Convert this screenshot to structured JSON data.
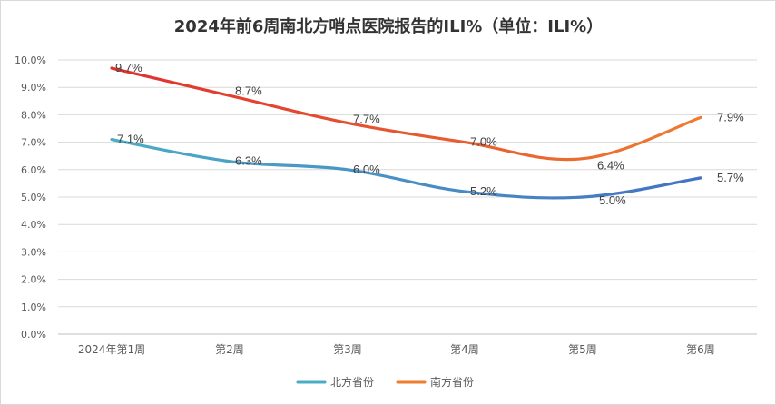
{
  "chart_data": {
    "type": "line",
    "title": "2024年前6周南北方哨点医院报告的ILI%（单位：ILI%）",
    "categories": [
      "2024年第1周",
      "第2周",
      "第3周",
      "第4周",
      "第5周",
      "第6周"
    ],
    "ylim": [
      0,
      10
    ],
    "ytick_labels": [
      "0.0%",
      "1.0%",
      "2.0%",
      "3.0%",
      "4.0%",
      "5.0%",
      "6.0%",
      "7.0%",
      "8.0%",
      "9.0%",
      "10.0%"
    ],
    "grid": true,
    "legend_position": "bottom",
    "series": [
      {
        "name": "北方省份",
        "values": [
          7.1,
          6.3,
          6.0,
          5.2,
          5.0,
          5.7
        ],
        "labels": [
          "7.1%",
          "6.3%",
          "6.0%",
          "5.2%",
          "5.0%",
          "5.7%"
        ],
        "color_start": "#4bacc6",
        "color_end": "#4472c4"
      },
      {
        "name": "南方省份",
        "values": [
          9.7,
          8.7,
          7.7,
          7.0,
          6.4,
          7.9
        ],
        "labels": [
          "9.7%",
          "8.7%",
          "7.7%",
          "7.0%",
          "6.4%",
          "7.9%"
        ],
        "color_start": "#e0302f",
        "color_end": "#ed7d31"
      }
    ]
  }
}
